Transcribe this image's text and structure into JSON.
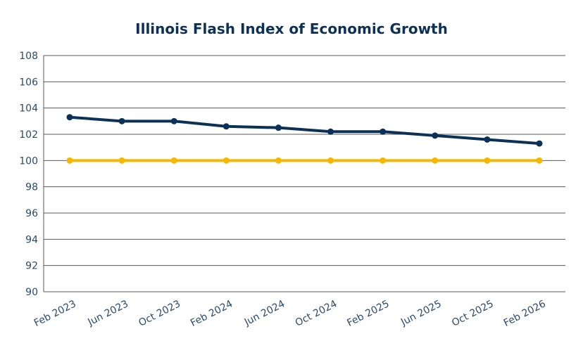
{
  "chart_data": {
    "type": "line",
    "title": "Illinois Flash Index of Economic Growth",
    "xlabel": "",
    "ylabel": "",
    "categories": [
      "Feb 2023",
      "Jun 2023",
      "Oct 2023",
      "Feb 2024",
      "Jun 2024",
      "Oct 2024",
      "Feb 2025",
      "Jun 2025",
      "Oct 2025",
      "Feb 2026"
    ],
    "ylim": [
      90,
      108
    ],
    "yticks": [
      90,
      92,
      94,
      96,
      98,
      100,
      102,
      104,
      106,
      108
    ],
    "grid": true,
    "legend": "none",
    "series": [
      {
        "color": "#0b3256",
        "values": [
          103.3,
          103.0,
          103.0,
          102.6,
          102.5,
          102.2,
          102.2,
          101.9,
          101.6,
          101.3
        ]
      },
      {
        "color": "#f5b800",
        "values": [
          100,
          100,
          100,
          100,
          100,
          100,
          100,
          100,
          100,
          100
        ]
      }
    ]
  }
}
